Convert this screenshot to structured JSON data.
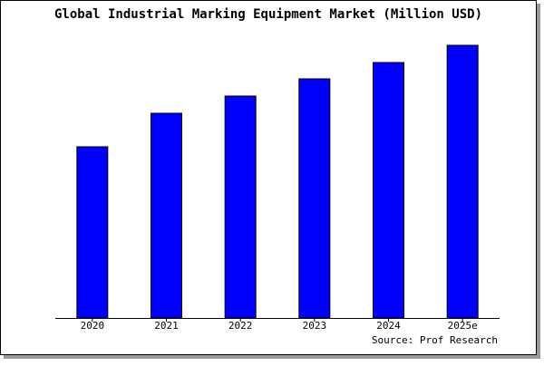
{
  "chart_data": {
    "type": "bar",
    "title": "Global Industrial Marking Equipment Market (Million USD)",
    "categories": [
      "2020",
      "2021",
      "2022",
      "2023",
      "2024",
      "2025e"
    ],
    "values": [
      1890,
      2260,
      2450,
      2640,
      2820,
      3010
    ],
    "color": "#0000ff",
    "ylim": [
      0,
      3060
    ],
    "source": "Source: Prof Research"
  }
}
